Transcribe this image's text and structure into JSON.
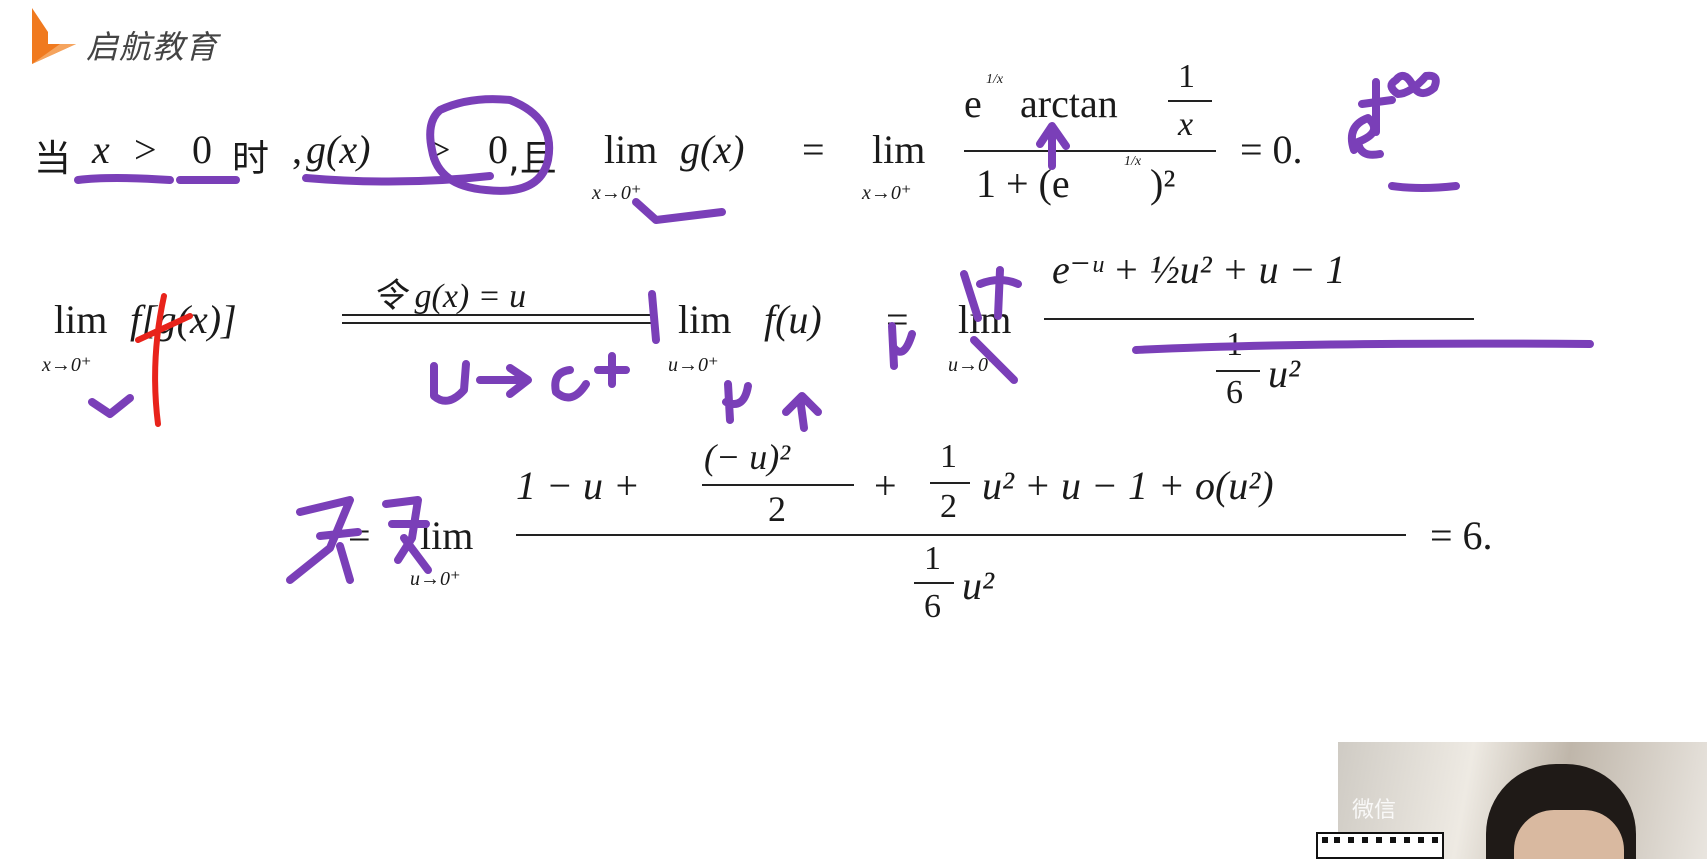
{
  "brand": {
    "name": "启航教育",
    "accent": "#f07a1f"
  },
  "line1": {
    "dang": "当",
    "x": "x",
    "gt": ">",
    "zero": "0",
    "shi": "时",
    "comma": ",",
    "gx": "g(x)",
    "gt2": ">",
    "zero2": "0",
    "qie": ",且",
    "lim": "lim",
    "lim_sub": "x→0⁺",
    "gx2": "g(x)",
    "eq": "=",
    "lim2": "lim",
    "lim2_sub": "x→0⁺",
    "num_e": "e",
    "num_e_exp": "1/x",
    "arctan": "arctan",
    "one": "1",
    "x_den": "x",
    "den": "1 + (e",
    "den_exp": "1/x",
    "den_close": ")²",
    "eq0": "= 0."
  },
  "line2": {
    "lim": "lim",
    "lim_sub": "x→0⁺",
    "fg": "f[g(x)]",
    "ling": "令 g(x) = u",
    "lim2": "lim",
    "lim2_sub": "u→0⁺",
    "fu": "f(u)",
    "eq": "=",
    "lim3": "lim",
    "lim3_sub": "u→0⁺",
    "num": "e⁻ᵘ + ½u² + u − 1",
    "den_frac": "1",
    "den_frac2": "6",
    "den_u": "u²"
  },
  "line3": {
    "eq": "=",
    "lim": "lim",
    "lim_sub": "u→0⁺",
    "num_a": "1 − u +",
    "num_frac_n": "(− u)²",
    "num_frac_d": "2",
    "num_b": "+",
    "half_n": "1",
    "half_d": "2",
    "num_c": "u² + u − 1 + o(u²)",
    "den_n": "1",
    "den_d": "6",
    "den_u": "u²",
    "result": "= 6."
  },
  "handwriting": {
    "ink_color": "#7a3fb8",
    "red_color": "#e8231b",
    "e_plus_inf": "e⁺∞",
    "arrows": "u → 0⁺",
    "u_label": "u",
    "dai": "代",
    "zhan": "展"
  },
  "webcam": {
    "caption": "微信"
  }
}
